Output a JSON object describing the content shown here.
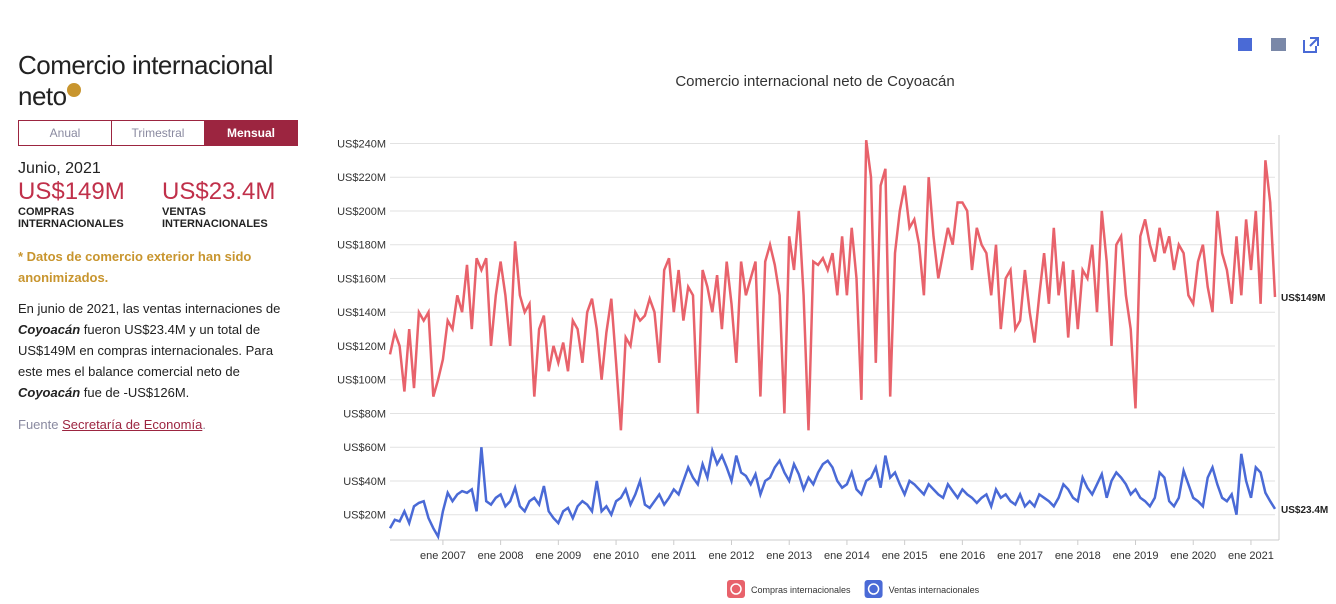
{
  "panel": {
    "title": "Comercio internacional neto",
    "tabs": [
      "Anual",
      "Trimestral",
      "Mensual"
    ],
    "active_tab": 2,
    "date": "Junio, 2021",
    "stats": [
      {
        "value": "US$149M",
        "label": "COMPRAS INTERNACIONALES"
      },
      {
        "value": "US$23.4M",
        "label": "VENTAS INTERNACIONALES"
      }
    ],
    "note": "* Datos de comercio exterior han sido anonimizados.",
    "paragraph": [
      "En junio de 2021, las ventas internaciones de ",
      "Coyoacán",
      " fueron US$23.4M y un total de US$149M en compras internacionales. Para este mes el balance comercial neto de ",
      "Coyoacán",
      " fue de -US$126M."
    ],
    "source_prefix": "Fuente",
    "source_link": "Secretaría de Economía",
    "source_suffix": "."
  },
  "chart_data": {
    "type": "line",
    "title": "Comercio internacional neto de Coyoacán",
    "start": "2006-02",
    "xlim": [
      "2006-02",
      "2021-06"
    ],
    "xticks": [
      {
        "value": "2007-01",
        "label": "ene 2007"
      },
      {
        "value": "2008-01",
        "label": "ene 2008"
      },
      {
        "value": "2009-01",
        "label": "ene 2009"
      },
      {
        "value": "2010-01",
        "label": "ene 2010"
      },
      {
        "value": "2011-01",
        "label": "ene 2011"
      },
      {
        "value": "2012-01",
        "label": "ene 2012"
      },
      {
        "value": "2013-01",
        "label": "ene 2013"
      },
      {
        "value": "2014-01",
        "label": "ene 2014"
      },
      {
        "value": "2015-01",
        "label": "ene 2015"
      },
      {
        "value": "2016-01",
        "label": "ene 2016"
      },
      {
        "value": "2017-01",
        "label": "ene 2017"
      },
      {
        "value": "2018-01",
        "label": "ene 2018"
      },
      {
        "value": "2019-01",
        "label": "ene 2019"
      },
      {
        "value": "2020-01",
        "label": "ene 2020"
      },
      {
        "value": "2021-01",
        "label": "ene 2021"
      }
    ],
    "ylim": [
      5,
      245
    ],
    "yticks": [
      {
        "value": 20,
        "label": "US$20M"
      },
      {
        "value": 40,
        "label": "US$40M"
      },
      {
        "value": 60,
        "label": "US$60M"
      },
      {
        "value": 80,
        "label": "US$80M"
      },
      {
        "value": 100,
        "label": "US$100M"
      },
      {
        "value": 120,
        "label": "US$120M"
      },
      {
        "value": 140,
        "label": "US$140M"
      },
      {
        "value": 160,
        "label": "US$160M"
      },
      {
        "value": 180,
        "label": "US$180M"
      },
      {
        "value": 200,
        "label": "US$200M"
      },
      {
        "value": 220,
        "label": "US$220M"
      },
      {
        "value": 240,
        "label": "US$240M"
      }
    ],
    "grid": true,
    "series": [
      {
        "name": "Compras internacionales",
        "color": "#e8626b",
        "end_label": "US$149M",
        "values": [
          115,
          128,
          120,
          93,
          130,
          95,
          140,
          135,
          140,
          90,
          100,
          112,
          135,
          130,
          150,
          140,
          168,
          130,
          172,
          165,
          172,
          120,
          150,
          170,
          150,
          120,
          182,
          150,
          140,
          145,
          90,
          130,
          138,
          105,
          120,
          110,
          122,
          105,
          135,
          130,
          110,
          140,
          148,
          130,
          100,
          128,
          148,
          110,
          70,
          125,
          120,
          140,
          135,
          138,
          148,
          140,
          110,
          165,
          172,
          140,
          165,
          135,
          155,
          150,
          80,
          165,
          155,
          140,
          162,
          130,
          170,
          145,
          110,
          170,
          150,
          160,
          170,
          90,
          170,
          180,
          168,
          150,
          80,
          185,
          165,
          200,
          150,
          70,
          170,
          168,
          172,
          165,
          175,
          150,
          185,
          150,
          190,
          160,
          88,
          242,
          220,
          110,
          215,
          225,
          90,
          175,
          200,
          215,
          190,
          195,
          180,
          150,
          220,
          185,
          160,
          175,
          190,
          180,
          205,
          205,
          200,
          165,
          190,
          180,
          175,
          150,
          180,
          130,
          160,
          165,
          130,
          135,
          165,
          140,
          122,
          150,
          175,
          145,
          190,
          150,
          170,
          125,
          165,
          130,
          165,
          160,
          180,
          140,
          200,
          170,
          120,
          180,
          185,
          150,
          130,
          83,
          185,
          195,
          180,
          170,
          190,
          175,
          185,
          165,
          180,
          175,
          150,
          145,
          170,
          180,
          155,
          140,
          200,
          175,
          165,
          145,
          185,
          150,
          195,
          165,
          200,
          145,
          230,
          205,
          149
        ]
      },
      {
        "name": "Ventas internacionales",
        "color": "#4a6ad6",
        "end_label": "US$23.4M",
        "values": [
          12,
          17,
          16,
          22,
          15,
          25,
          27,
          28,
          18,
          12,
          7,
          22,
          33,
          28,
          32,
          34,
          33,
          35,
          22,
          60,
          28,
          26,
          30,
          32,
          25,
          28,
          36,
          25,
          22,
          28,
          30,
          26,
          37,
          22,
          18,
          15,
          22,
          24,
          18,
          25,
          28,
          26,
          22,
          40,
          22,
          25,
          20,
          28,
          30,
          35,
          26,
          32,
          40,
          26,
          24,
          28,
          32,
          26,
          30,
          35,
          32,
          40,
          48,
          42,
          38,
          50,
          42,
          58,
          50,
          55,
          48,
          40,
          55,
          45,
          43,
          38,
          44,
          32,
          40,
          42,
          48,
          52,
          45,
          40,
          50,
          44,
          35,
          42,
          38,
          45,
          50,
          52,
          48,
          40,
          36,
          38,
          45,
          35,
          32,
          40,
          42,
          48,
          36,
          55,
          42,
          45,
          38,
          32,
          40,
          38,
          35,
          32,
          38,
          35,
          32,
          30,
          38,
          34,
          30,
          35,
          32,
          30,
          27,
          30,
          32,
          25,
          35,
          30,
          32,
          28,
          26,
          32,
          25,
          28,
          25,
          32,
          30,
          28,
          25,
          30,
          38,
          35,
          30,
          28,
          42,
          36,
          32,
          38,
          44,
          30,
          40,
          45,
          42,
          38,
          32,
          35,
          30,
          28,
          25,
          30,
          45,
          42,
          28,
          25,
          30,
          46,
          38,
          30,
          28,
          25,
          42,
          48,
          38,
          30,
          28,
          32,
          20,
          56,
          40,
          30,
          48,
          45,
          33,
          28,
          23.4
        ]
      }
    ]
  }
}
